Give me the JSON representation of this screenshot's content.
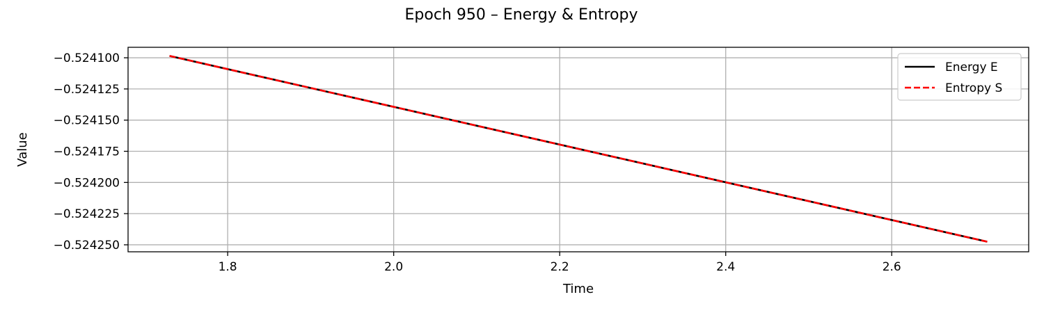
{
  "chart_data": {
    "type": "line",
    "title": "Epoch 950 – Energy & Entropy",
    "xlabel": "Time",
    "ylabel": "Value",
    "xlim": [
      1.68,
      2.765
    ],
    "ylim": [
      -0.5242556,
      -0.5240916
    ],
    "xticks": [
      1.8,
      2.0,
      2.2,
      2.4,
      2.6
    ],
    "xtick_labels": [
      "1.8",
      "2.0",
      "2.2",
      "2.4",
      "2.6"
    ],
    "yticks": [
      -0.5241,
      -0.524125,
      -0.52415,
      -0.524175,
      -0.5242,
      -0.524225,
      -0.52425
    ],
    "ytick_labels": [
      "−0.524100",
      "−0.524125",
      "−0.524150",
      "−0.524175",
      "−0.524200",
      "−0.524225",
      "−0.524250"
    ],
    "grid": true,
    "legend_position": "top-right",
    "series": [
      {
        "name": "Energy E",
        "color": "#000000",
        "style": "solid",
        "x": [
          1.73,
          2.715
        ],
        "y": [
          -0.5240985,
          -0.5242475
        ]
      },
      {
        "name": "Entropy S",
        "color": "#ff0000",
        "style": "dashed",
        "x": [
          1.73,
          2.715
        ],
        "y": [
          -0.5240985,
          -0.5242475
        ]
      }
    ]
  }
}
